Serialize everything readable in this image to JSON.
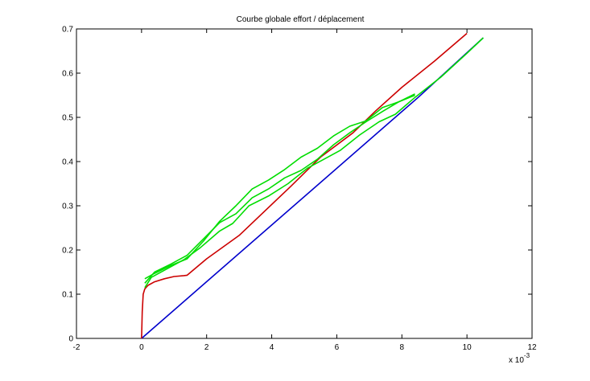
{
  "chart_data": {
    "type": "line",
    "title": "Courbe globale effort / déplacement",
    "xlabel": "",
    "ylabel": "",
    "x_multiplier_label": "x 10",
    "x_multiplier_exponent": "-3",
    "xlim": [
      -2,
      12
    ],
    "ylim": [
      0,
      0.7
    ],
    "x_ticks": [
      -2,
      0,
      2,
      4,
      6,
      8,
      10,
      12
    ],
    "y_ticks": [
      0,
      0.1,
      0.2,
      0.3,
      0.4,
      0.5,
      0.6,
      0.7
    ],
    "grid": false,
    "legend": "none",
    "series": [
      {
        "color": "#0000cc",
        "x": [
          0,
          8.5,
          10.5
        ],
        "y": [
          0,
          0.545,
          0.68
        ]
      },
      {
        "color": "#cc0000",
        "x": [
          0,
          0.02,
          0.05,
          0.1,
          0.2,
          0.4,
          0.7,
          1.0,
          1.3,
          1.4,
          2.0,
          3.0,
          4.6,
          5.5,
          6.5,
          7.2,
          8.0,
          9.0,
          10.0
        ],
        "y": [
          0,
          0.06,
          0.1,
          0.112,
          0.12,
          0.128,
          0.135,
          0.14,
          0.142,
          0.143,
          0.18,
          0.233,
          0.345,
          0.41,
          0.465,
          0.515,
          0.568,
          0.627,
          0.69
        ]
      },
      {
        "color": "#00dd00",
        "x": [
          0.1,
          0.3,
          0.8,
          1.3,
          1.8,
          2.4,
          2.8,
          3.3,
          3.9,
          4.5,
          5.1,
          5.6,
          6.1,
          6.7,
          7.3,
          7.8,
          8.4,
          9.2,
          10.0,
          10.5
        ],
        "y": [
          0.115,
          0.138,
          0.158,
          0.178,
          0.205,
          0.243,
          0.26,
          0.3,
          0.322,
          0.35,
          0.385,
          0.405,
          0.425,
          0.46,
          0.49,
          0.507,
          0.545,
          0.591,
          0.645,
          0.68
        ]
      },
      {
        "color": "#00dd00",
        "x": [
          0.1,
          0.4,
          0.9,
          1.4,
          1.9,
          2.4,
          2.9,
          3.4,
          3.9,
          4.4,
          4.9,
          5.4,
          5.9,
          6.4,
          6.9,
          7.4,
          7.9,
          8.4
        ],
        "y": [
          0.125,
          0.15,
          0.168,
          0.188,
          0.225,
          0.262,
          0.282,
          0.318,
          0.338,
          0.363,
          0.38,
          0.405,
          0.438,
          0.465,
          0.49,
          0.513,
          0.535,
          0.553
        ]
      },
      {
        "color": "#00dd00",
        "x": [
          0.1,
          0.4,
          0.9,
          1.4,
          1.9,
          2.4,
          2.9,
          3.4,
          3.9,
          4.4,
          4.9,
          5.4,
          5.9,
          6.4,
          6.9,
          7.4,
          7.9,
          8.4
        ],
        "y": [
          0.135,
          0.147,
          0.165,
          0.18,
          0.22,
          0.265,
          0.3,
          0.338,
          0.358,
          0.382,
          0.41,
          0.43,
          0.458,
          0.48,
          0.492,
          0.522,
          0.535,
          0.55
        ]
      }
    ]
  }
}
